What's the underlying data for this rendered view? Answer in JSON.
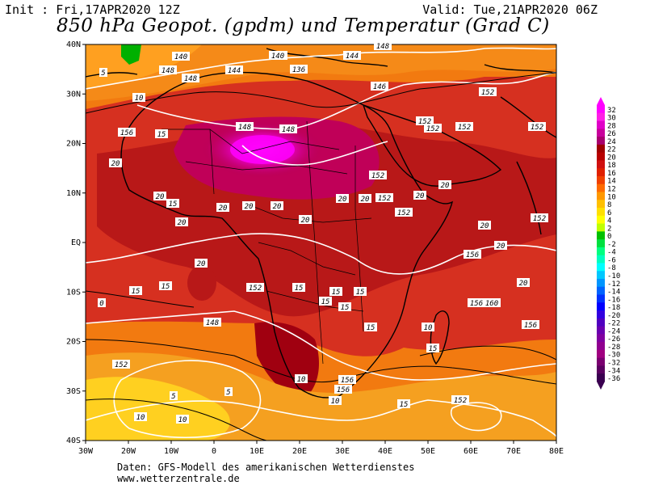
{
  "header": {
    "init": "Init : Fri,17APR2020 12Z",
    "valid": "Valid: Tue,21APR2020 06Z",
    "title": "850 hPa Geopot. (gpdm) und Temperatur (Grad C)"
  },
  "footer": {
    "line1": "Daten: GFS-Modell des amerikanischen Wetterdienstes",
    "line2": "www.wetterzentrale.de"
  },
  "axes": {
    "lat_labels": [
      "40N",
      "30N",
      "20N",
      "10N",
      "EQ",
      "10S",
      "20S",
      "30S",
      "40S"
    ],
    "lon_labels": [
      "30W",
      "20W",
      "10W",
      "0",
      "10E",
      "20E",
      "30E",
      "40E",
      "50E",
      "60E",
      "70E",
      "80E"
    ]
  },
  "colorbar": {
    "labels": [
      "32",
      "30",
      "28",
      "26",
      "24",
      "22",
      "20",
      "18",
      "16",
      "14",
      "12",
      "10",
      "8",
      "6",
      "4",
      "2",
      "0",
      "-2",
      "-4",
      "-6",
      "-8",
      "-10",
      "-12",
      "-14",
      "-16",
      "-18",
      "-20",
      "-22",
      "-24",
      "-26",
      "-28",
      "-30",
      "-32",
      "-34",
      "-36"
    ],
    "colors": [
      "#ff00ff",
      "#ff1fe6",
      "#e000c8",
      "#c8009c",
      "#a8006e",
      "#a00000",
      "#b80000",
      "#d01010",
      "#e02000",
      "#f04000",
      "#ff6a00",
      "#ff9800",
      "#ffc000",
      "#ffe000",
      "#ffff00",
      "#c0ff00",
      "#00c000",
      "#00e040",
      "#00ff80",
      "#00ffc0",
      "#00ffff",
      "#00c8ff",
      "#0096ff",
      "#0064ff",
      "#0032ff",
      "#0000ff",
      "#3200e0",
      "#5000c0",
      "#6a00b0",
      "#8000a0",
      "#900090",
      "#a00080",
      "#7a0070",
      "#5a0060",
      "#3a0050"
    ]
  },
  "contours": {
    "geopot": [
      "140",
      "144",
      "148",
      "136",
      "140",
      "148",
      "144",
      "144",
      "148",
      "152",
      "152",
      "148",
      "146",
      "152",
      "148",
      "152",
      "152",
      "156",
      "152",
      "152",
      "152",
      "152",
      "156",
      "160",
      "156",
      "156",
      "156",
      "156",
      "152",
      "148",
      "152",
      "152"
    ],
    "temp": [
      "5",
      "10",
      "15",
      "20",
      "15",
      "20",
      "20",
      "20",
      "20",
      "20",
      "20",
      "20",
      "20",
      "20",
      "20",
      "20",
      "20",
      "20",
      "20",
      "15",
      "15",
      "15",
      "15",
      "15",
      "15",
      "15",
      "15",
      "15",
      "15",
      "10",
      "10",
      "10",
      "5",
      "5",
      "10",
      "10",
      "0"
    ]
  },
  "map_colors": {
    "outer": "#f27a10",
    "warm": "#d63020",
    "hot": "#b81818",
    "veryhot": "#c00058",
    "peak": "#ff00ff",
    "cool": "#f5a020",
    "cooler": "#ffd020",
    "green": "#00b000",
    "land": "#000000",
    "contour": "#ffffff"
  }
}
